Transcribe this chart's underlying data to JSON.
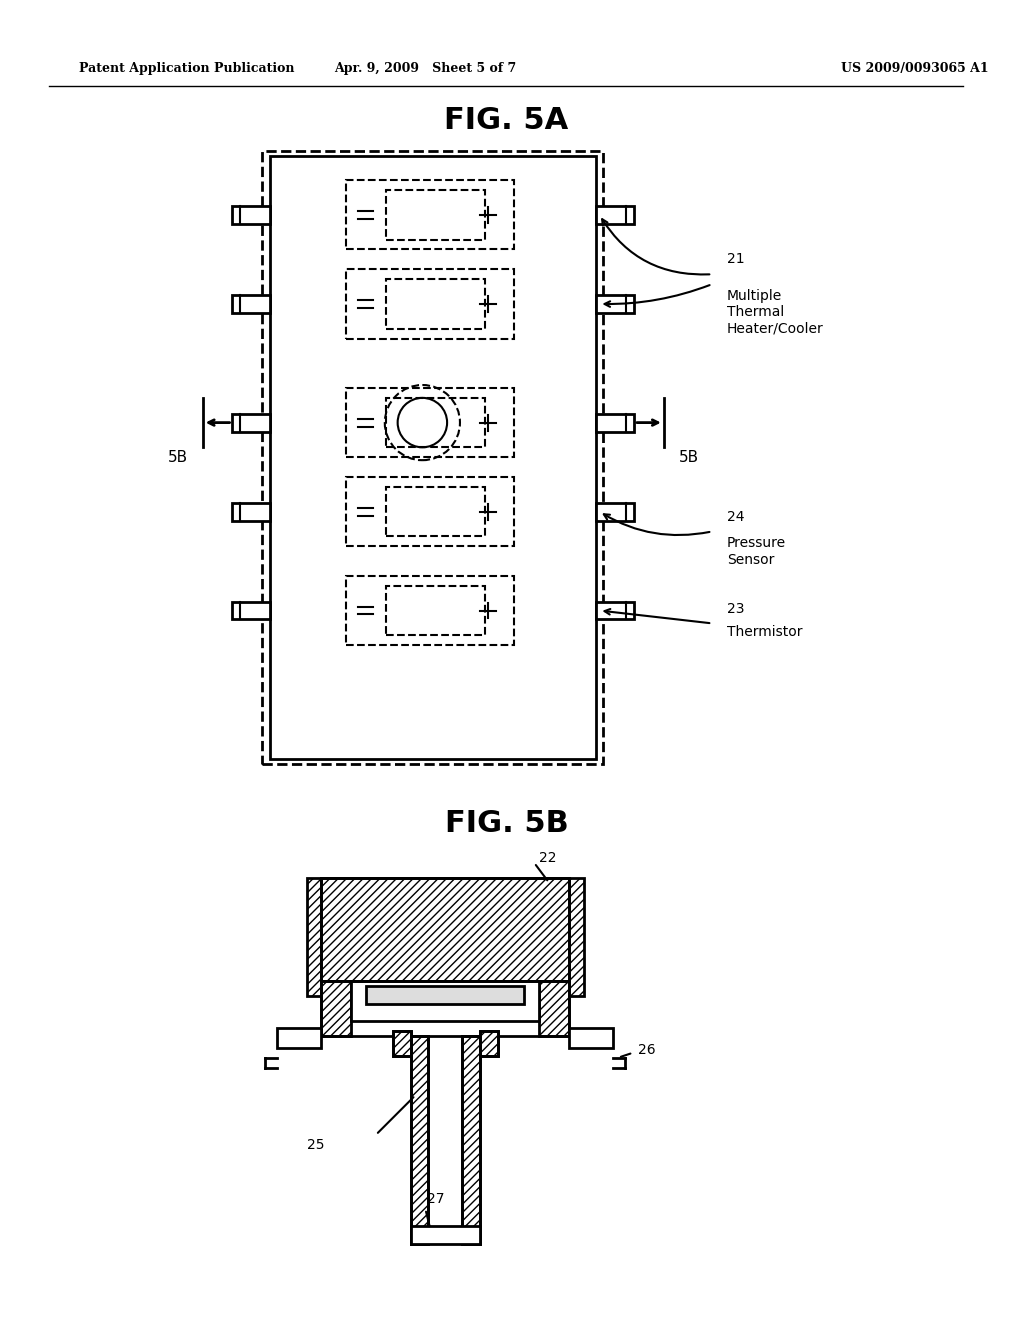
{
  "header_left": "Patent Application Publication",
  "header_center": "Apr. 9, 2009   Sheet 5 of 7",
  "header_right": "US 2009/0093065 A1",
  "fig5a_title": "FIG. 5A",
  "fig5b_title": "FIG. 5B",
  "label_5b_left": "5B",
  "label_5b_right": "5B",
  "label_21": "21",
  "label_21_text": "Multiple\nThermal\nHeater/Cooler",
  "label_24": "24",
  "label_24_text": "Pressure\nSensor",
  "label_23": "23",
  "label_23_text": "Thermistor",
  "label_22": "22",
  "label_25": "25",
  "label_26": "26",
  "label_27": "27",
  "bg_color": "#ffffff",
  "line_color": "#000000"
}
